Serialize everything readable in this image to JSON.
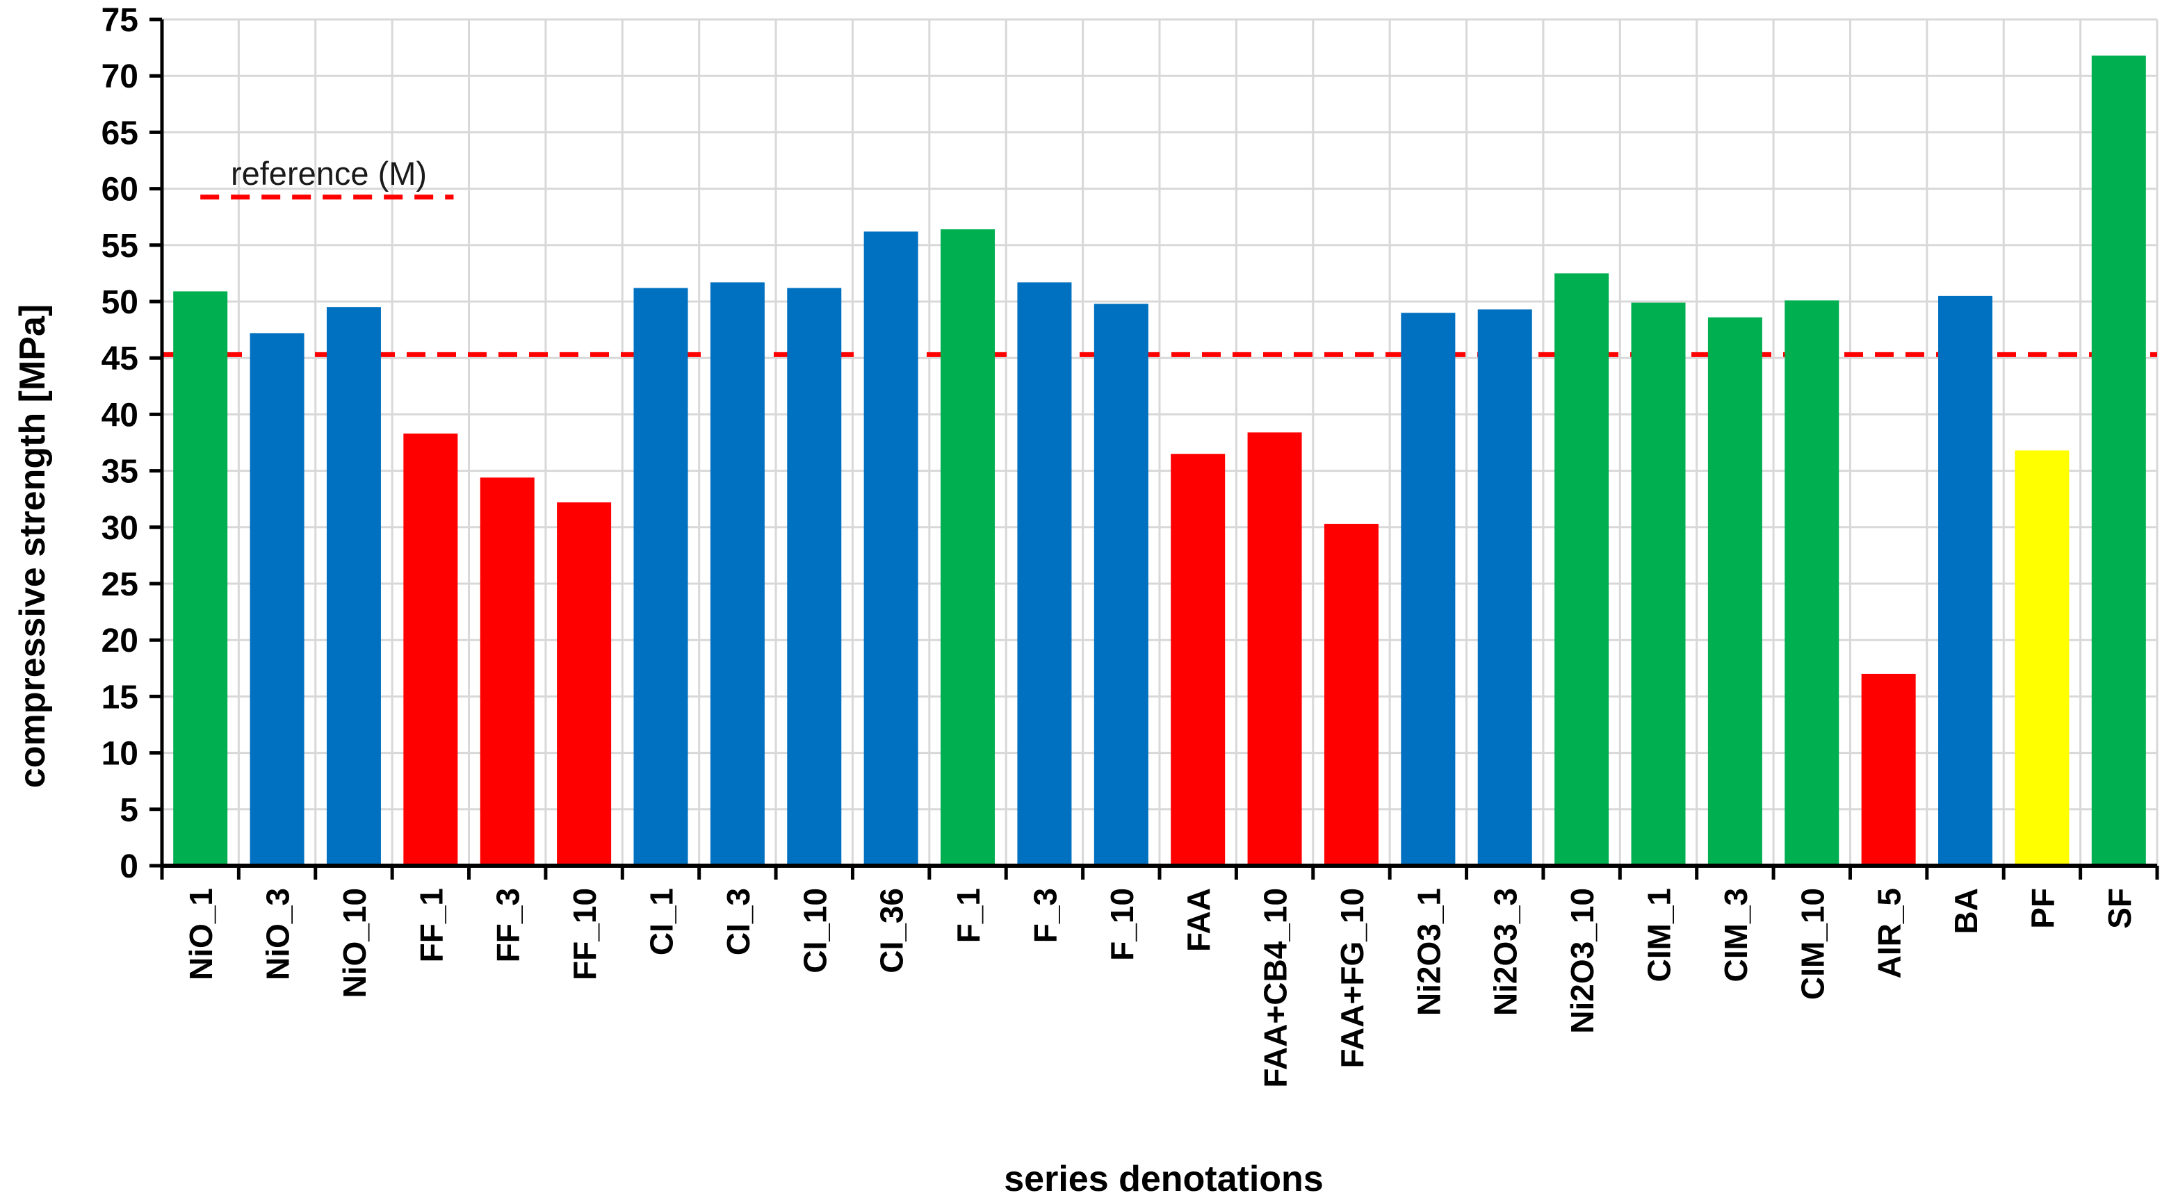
{
  "page": {
    "background": "#FFFFFF"
  },
  "chart_data": {
    "type": "bar",
    "title": "",
    "xlabel": "series denotations",
    "ylabel": "compressive strength [MPa]",
    "ylim": [
      0,
      75
    ],
    "ytick_step": 5,
    "grid": true,
    "gridline_color": "#D8D8D8",
    "axis_color": "#000000",
    "palette": {
      "green": "#00AF50",
      "blue": "#0070C0",
      "red": "#FF0000",
      "yellow": "#FFFF00"
    },
    "categories": [
      "NiO_1",
      "NiO_3",
      "NiO_10",
      "FF_1",
      "FF_3",
      "FF_10",
      "CI_1",
      "CI_3",
      "CI_10",
      "CI_36",
      "F_1",
      "F_3",
      "F_10",
      "FAA",
      "FAA+CB4_10",
      "FAA+FG_10",
      "Ni2O3_1",
      "Ni2O3_3",
      "Ni2O3_10",
      "CIM_1",
      "CIM_3",
      "CIM_10",
      "AIR_5",
      "BA",
      "PF",
      "SF"
    ],
    "values": [
      50.9,
      47.2,
      49.5,
      38.3,
      34.4,
      32.2,
      51.2,
      51.7,
      51.2,
      56.2,
      56.4,
      51.7,
      49.8,
      36.5,
      38.4,
      30.3,
      49.0,
      49.3,
      52.5,
      49.9,
      48.6,
      50.1,
      17.0,
      50.5,
      36.8,
      71.8
    ],
    "bar_colors": [
      "#00AF50",
      "#0070C0",
      "#0070C0",
      "#FF0000",
      "#FF0000",
      "#FF0000",
      "#0070C0",
      "#0070C0",
      "#0070C0",
      "#0070C0",
      "#00AF50",
      "#0070C0",
      "#0070C0",
      "#FF0000",
      "#FF0000",
      "#FF0000",
      "#0070C0",
      "#0070C0",
      "#00AF50",
      "#00AF50",
      "#00AF50",
      "#00AF50",
      "#FF0000",
      "#0070C0",
      "#FFFF00",
      "#00AF50"
    ],
    "reference_line": {
      "value": 45.3,
      "color": "#FF0000",
      "style": "dashed"
    },
    "legend": {
      "label": "reference (M)",
      "line_value": 60,
      "color": "#FF0000",
      "style": "dashed",
      "span_categories": [
        0.5,
        3.8
      ]
    }
  }
}
